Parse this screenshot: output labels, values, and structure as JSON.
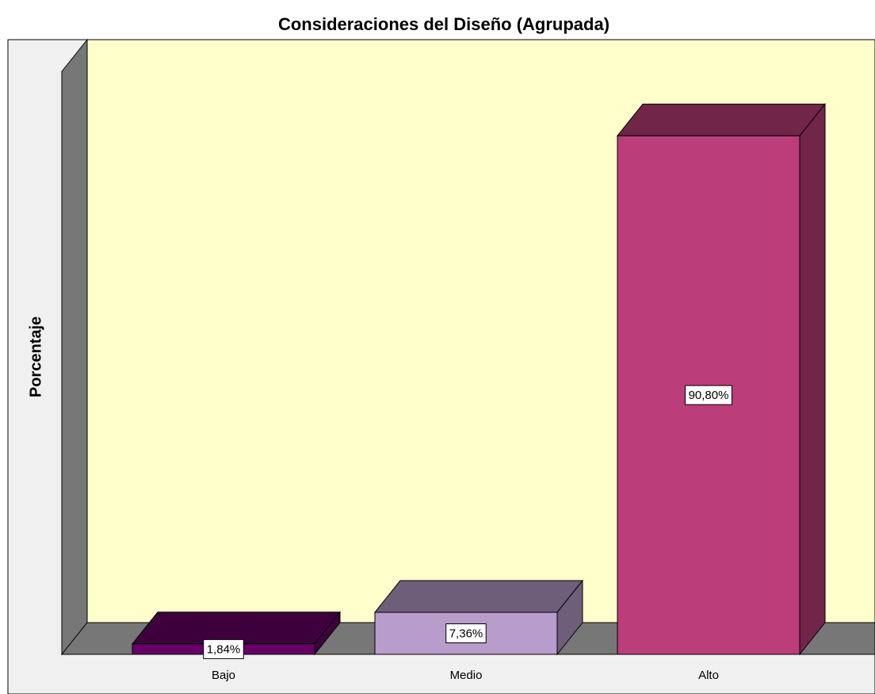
{
  "chart_data": {
    "type": "bar3d",
    "title": "Consideraciones del Diseño (Agrupada)",
    "y_label": "Porcentaje",
    "categories": [
      "Bajo",
      "Medio",
      "Alto"
    ],
    "values": [
      1.84,
      7.36,
      90.8
    ],
    "value_labels": [
      "1,84%",
      "7,36%",
      "90,80%"
    ],
    "colors": [
      "#660066",
      "#b89ccb",
      "#bb3d79"
    ],
    "ylim": [
      0,
      100
    ]
  }
}
